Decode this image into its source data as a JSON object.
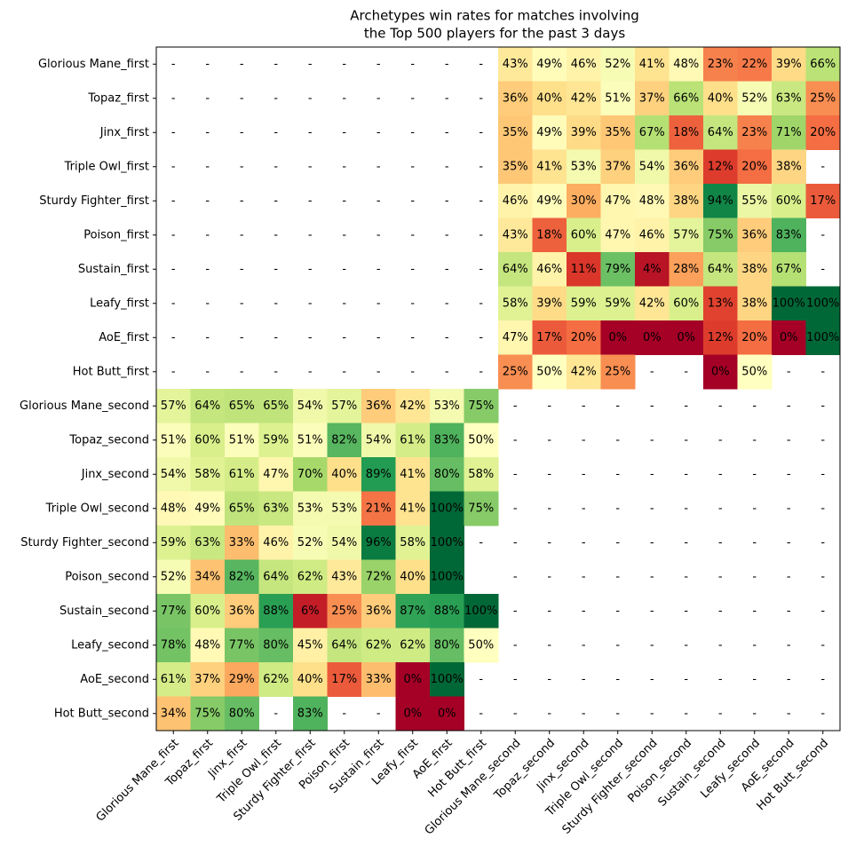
{
  "chart_data": {
    "type": "heatmap",
    "title": [
      "Archetypes win rates for matches involving",
      " the Top 500 players for the past 3 days"
    ],
    "x_categories": [
      "Glorious Mane_first",
      "Topaz_first",
      "Jinx_first",
      "Triple Owl_first",
      "Sturdy Fighter_first",
      "Poison_first",
      "Sustain_first",
      "Leafy_first",
      "AoE_first",
      "Hot Butt_first",
      "Glorious Mane_second",
      "Topaz_second",
      "Jinx_second",
      "Triple Owl_second",
      "Sturdy Fighter_second",
      "Poison_second",
      "Sustain_second",
      "Leafy_second",
      "AoE_second",
      "Hot Butt_second"
    ],
    "y_categories": [
      "Glorious Mane_first",
      "Topaz_first",
      "Jinx_first",
      "Triple Owl_first",
      "Sturdy Fighter_first",
      "Poison_first",
      "Sustain_first",
      "Leafy_first",
      "AoE_first",
      "Hot Butt_first",
      "Glorious Mane_second",
      "Topaz_second",
      "Jinx_second",
      "Triple Owl_second",
      "Sturdy Fighter_second",
      "Poison_second",
      "Sustain_second",
      "Leafy_second",
      "AoE_second",
      "Hot Butt_second"
    ],
    "values": [
      [
        null,
        null,
        null,
        null,
        null,
        null,
        null,
        null,
        null,
        null,
        43,
        49,
        46,
        52,
        41,
        48,
        23,
        22,
        39,
        66
      ],
      [
        null,
        null,
        null,
        null,
        null,
        null,
        null,
        null,
        null,
        null,
        36,
        40,
        42,
        51,
        37,
        66,
        40,
        52,
        63,
        25
      ],
      [
        null,
        null,
        null,
        null,
        null,
        null,
        null,
        null,
        null,
        null,
        35,
        49,
        39,
        35,
        67,
        18,
        64,
        23,
        71,
        20
      ],
      [
        null,
        null,
        null,
        null,
        null,
        null,
        null,
        null,
        null,
        null,
        35,
        41,
        53,
        37,
        54,
        36,
        12,
        20,
        38,
        null
      ],
      [
        null,
        null,
        null,
        null,
        null,
        null,
        null,
        null,
        null,
        null,
        46,
        49,
        30,
        47,
        48,
        38,
        94,
        55,
        60,
        17
      ],
      [
        null,
        null,
        null,
        null,
        null,
        null,
        null,
        null,
        null,
        null,
        43,
        18,
        60,
        47,
        46,
        57,
        75,
        36,
        83,
        null
      ],
      [
        null,
        null,
        null,
        null,
        null,
        null,
        null,
        null,
        null,
        null,
        64,
        46,
        11,
        79,
        4,
        28,
        64,
        38,
        67,
        null
      ],
      [
        null,
        null,
        null,
        null,
        null,
        null,
        null,
        null,
        null,
        null,
        58,
        39,
        59,
        59,
        42,
        60,
        13,
        38,
        100,
        100
      ],
      [
        null,
        null,
        null,
        null,
        null,
        null,
        null,
        null,
        null,
        null,
        47,
        17,
        20,
        0,
        0,
        0,
        12,
        20,
        0,
        100
      ],
      [
        null,
        null,
        null,
        null,
        null,
        null,
        null,
        null,
        null,
        null,
        25,
        50,
        42,
        25,
        null,
        null,
        0,
        50,
        null,
        null
      ],
      [
        57,
        64,
        65,
        65,
        54,
        57,
        36,
        42,
        53,
        75,
        null,
        null,
        null,
        null,
        null,
        null,
        null,
        null,
        null,
        null
      ],
      [
        51,
        60,
        51,
        59,
        51,
        82,
        54,
        61,
        83,
        50,
        null,
        null,
        null,
        null,
        null,
        null,
        null,
        null,
        null,
        null
      ],
      [
        54,
        58,
        61,
        47,
        70,
        40,
        89,
        41,
        80,
        58,
        null,
        null,
        null,
        null,
        null,
        null,
        null,
        null,
        null,
        null
      ],
      [
        48,
        49,
        65,
        63,
        53,
        53,
        21,
        41,
        100,
        75,
        null,
        null,
        null,
        null,
        null,
        null,
        null,
        null,
        null,
        null
      ],
      [
        59,
        63,
        33,
        46,
        52,
        54,
        96,
        58,
        100,
        null,
        null,
        null,
        null,
        null,
        null,
        null,
        null,
        null,
        null,
        null
      ],
      [
        52,
        34,
        82,
        64,
        62,
        43,
        72,
        40,
        100,
        null,
        null,
        null,
        null,
        null,
        null,
        null,
        null,
        null,
        null,
        null
      ],
      [
        77,
        60,
        36,
        88,
        6,
        25,
        36,
        87,
        88,
        100,
        null,
        null,
        null,
        null,
        null,
        null,
        null,
        null,
        null,
        null
      ],
      [
        78,
        48,
        77,
        80,
        45,
        64,
        62,
        62,
        80,
        50,
        null,
        null,
        null,
        null,
        null,
        null,
        null,
        null,
        null,
        null
      ],
      [
        61,
        37,
        29,
        62,
        40,
        17,
        33,
        0,
        100,
        null,
        null,
        null,
        null,
        null,
        null,
        null,
        null,
        null,
        null,
        null
      ],
      [
        34,
        75,
        80,
        null,
        83,
        null,
        null,
        0,
        0,
        null,
        null,
        null,
        null,
        null,
        null,
        null,
        null,
        null,
        null,
        null
      ]
    ],
    "value_labels": [
      [
        "-",
        "-",
        "-",
        "-",
        "-",
        "-",
        "-",
        "-",
        "-",
        "-",
        "43%",
        "49%",
        "46%",
        "52%",
        "41%",
        "48%",
        "23%",
        "22%",
        "39%",
        "66%"
      ],
      [
        "-",
        "-",
        "-",
        "-",
        "-",
        "-",
        "-",
        "-",
        "-",
        "-",
        "36%",
        "40%",
        "42%",
        "51%",
        "37%",
        "66%",
        "40%",
        "52%",
        "63%",
        "25%"
      ],
      [
        "-",
        "-",
        "-",
        "-",
        "-",
        "-",
        "-",
        "-",
        "-",
        "-",
        "35%",
        "49%",
        "39%",
        "35%",
        "67%",
        "18%",
        "64%",
        "23%",
        "71%",
        "20%"
      ],
      [
        "-",
        "-",
        "-",
        "-",
        "-",
        "-",
        "-",
        "-",
        "-",
        "-",
        "35%",
        "41%",
        "53%",
        "37%",
        "54%",
        "36%",
        "12%",
        "20%",
        "38%",
        "-"
      ],
      [
        "-",
        "-",
        "-",
        "-",
        "-",
        "-",
        "-",
        "-",
        "-",
        "-",
        "46%",
        "49%",
        "30%",
        "47%",
        "48%",
        "38%",
        "94%",
        "55%",
        "60%",
        "17%"
      ],
      [
        "-",
        "-",
        "-",
        "-",
        "-",
        "-",
        "-",
        "-",
        "-",
        "-",
        "43%",
        "18%",
        "60%",
        "47%",
        "46%",
        "57%",
        "75%",
        "36%",
        "83%",
        "-"
      ],
      [
        "-",
        "-",
        "-",
        "-",
        "-",
        "-",
        "-",
        "-",
        "-",
        "-",
        "64%",
        "46%",
        "11%",
        "79%",
        "4%",
        "28%",
        "64%",
        "38%",
        "67%",
        "-"
      ],
      [
        "-",
        "-",
        "-",
        "-",
        "-",
        "-",
        "-",
        "-",
        "-",
        "-",
        "58%",
        "39%",
        "59%",
        "59%",
        "42%",
        "60%",
        "13%",
        "38%",
        "100%",
        "100%"
      ],
      [
        "-",
        "-",
        "-",
        "-",
        "-",
        "-",
        "-",
        "-",
        "-",
        "-",
        "47%",
        "17%",
        "20%",
        "0%",
        "0%",
        "0%",
        "12%",
        "20%",
        "0%",
        "100%"
      ],
      [
        "-",
        "-",
        "-",
        "-",
        "-",
        "-",
        "-",
        "-",
        "-",
        "-",
        "25%",
        "50%",
        "42%",
        "25%",
        "-",
        "-",
        "0%",
        "50%",
        "-",
        "-"
      ],
      [
        "57%",
        "64%",
        "65%",
        "65%",
        "54%",
        "57%",
        "36%",
        "42%",
        "53%",
        "75%",
        "-",
        "-",
        "-",
        "-",
        "-",
        "-",
        "-",
        "-",
        "-",
        "-"
      ],
      [
        "51%",
        "60%",
        "51%",
        "59%",
        "51%",
        "82%",
        "54%",
        "61%",
        "83%",
        "50%",
        "-",
        "-",
        "-",
        "-",
        "-",
        "-",
        "-",
        "-",
        "-",
        "-"
      ],
      [
        "54%",
        "58%",
        "61%",
        "47%",
        "70%",
        "40%",
        "89%",
        "41%",
        "80%",
        "58%",
        "-",
        "-",
        "-",
        "-",
        "-",
        "-",
        "-",
        "-",
        "-",
        "-"
      ],
      [
        "48%",
        "49%",
        "65%",
        "63%",
        "53%",
        "53%",
        "21%",
        "41%",
        "100%",
        "75%",
        "-",
        "-",
        "-",
        "-",
        "-",
        "-",
        "-",
        "-",
        "-",
        "-"
      ],
      [
        "59%",
        "63%",
        "33%",
        "46%",
        "52%",
        "54%",
        "96%",
        "58%",
        "100%",
        "-",
        "-",
        "-",
        "-",
        "-",
        "-",
        "-",
        "-",
        "-",
        "-",
        "-"
      ],
      [
        "52%",
        "34%",
        "82%",
        "64%",
        "62%",
        "43%",
        "72%",
        "40%",
        "100%",
        null,
        "-",
        "-",
        "-",
        "-",
        "-",
        "-",
        "-",
        "-",
        "-",
        "-"
      ],
      [
        "77%",
        "60%",
        "36%",
        "88%",
        "6%",
        "25%",
        "36%",
        "87%",
        "88%",
        "100%",
        "-",
        "-",
        "-",
        "-",
        "-",
        "-",
        "-",
        "-",
        "-",
        "-"
      ],
      [
        "78%",
        "48%",
        "77%",
        "80%",
        "45%",
        "64%",
        "62%",
        "62%",
        "80%",
        "50%",
        "-",
        "-",
        "-",
        "-",
        "-",
        "-",
        "-",
        "-",
        "-",
        "-"
      ],
      [
        "61%",
        "37%",
        "29%",
        "62%",
        "40%",
        "17%",
        "33%",
        "0%",
        "100%",
        "-",
        "-",
        "-",
        "-",
        "-",
        "-",
        "-",
        "-",
        "-",
        "-",
        "-"
      ],
      [
        "34%",
        "75%",
        "80%",
        "-",
        "83%",
        "-",
        "-",
        "0%",
        "0%",
        "-",
        "-",
        "-",
        "-",
        "-",
        "-",
        "-",
        "-",
        "-",
        "-",
        "-"
      ]
    ],
    "colormap": [
      "#a50026",
      "#d73027",
      "#f46d43",
      "#fdae61",
      "#fee08b",
      "#ffffbf",
      "#d9ef8b",
      "#a6d96a",
      "#66bd63",
      "#1a9850",
      "#006837"
    ],
    "vlim": [
      0,
      100
    ]
  }
}
